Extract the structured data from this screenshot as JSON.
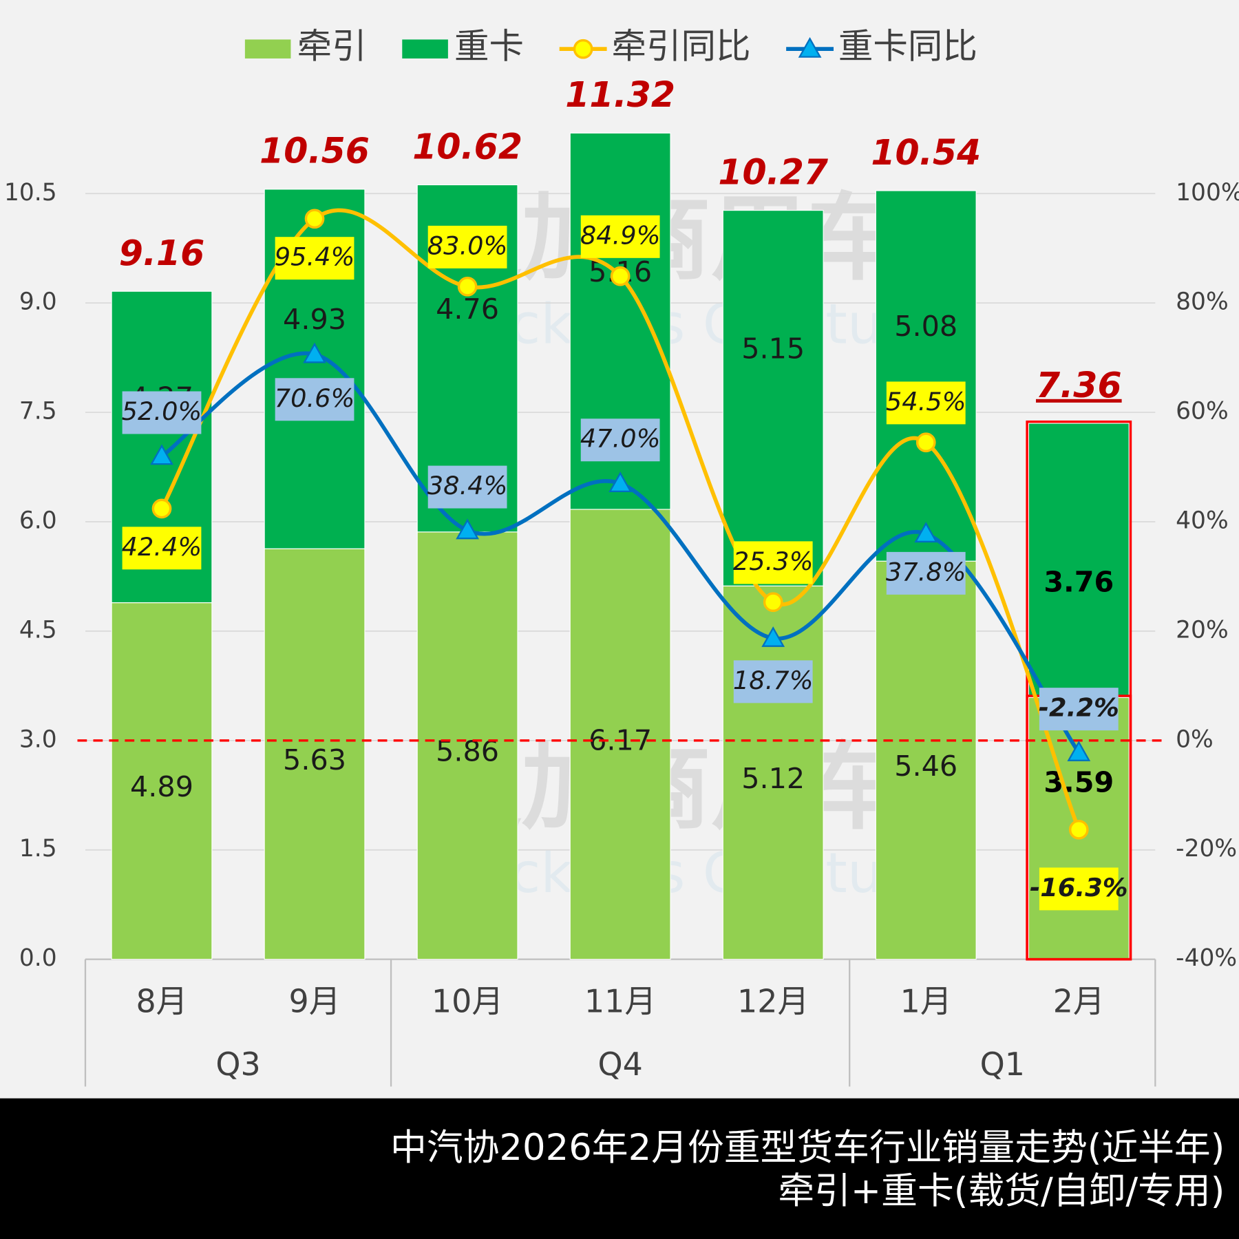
{
  "chart_data": {
    "type": "bar-line",
    "legend": {
      "position": "top"
    },
    "categories": [
      "8月",
      "9月",
      "10月",
      "11月",
      "12月",
      "1月",
      "2月"
    ],
    "groups": [
      {
        "name": "Q3",
        "count": 2
      },
      {
        "name": "Q4",
        "count": 3
      },
      {
        "name": "Q1",
        "count": 2
      }
    ],
    "series": [
      {
        "name": "牵引",
        "color": "#92d050",
        "values": [
          4.89,
          5.63,
          5.86,
          6.17,
          5.12,
          5.46,
          3.59
        ]
      },
      {
        "name": "重卡",
        "color": "#00b050",
        "values": [
          4.27,
          4.93,
          4.76,
          5.16,
          5.15,
          5.08,
          3.76
        ]
      },
      {
        "name": "牵引同比",
        "type": "line",
        "axis": "y2",
        "color": "#ffc000",
        "label_bg": "#ffff00",
        "values": [
          42.4,
          95.4,
          83.0,
          84.9,
          25.3,
          54.5,
          -16.3
        ],
        "value_labels": [
          "42.4%",
          "95.4%",
          "83.0%",
          "84.9%",
          "25.3%",
          "54.5%",
          "-16.3%"
        ]
      },
      {
        "name": "重卡同比",
        "type": "line",
        "axis": "y2",
        "color": "#0070c0",
        "label_bg": "#9dc3e6",
        "values": [
          52.0,
          70.6,
          38.4,
          47.0,
          18.7,
          37.8,
          -2.2
        ],
        "value_labels": [
          "52.0%",
          "70.6%",
          "38.4%",
          "47.0%",
          "18.7%",
          "37.8%",
          "-2.2%"
        ]
      }
    ],
    "totals": [
      9.16,
      10.56,
      10.62,
      11.32,
      10.27,
      10.54,
      7.36
    ],
    "ylim": [
      0,
      10.5
    ],
    "yticks": [
      {
        "value": 0,
        "label": "0.0"
      },
      1.5,
      {
        "value": 3,
        "label": "3.0"
      },
      4.5,
      {
        "value": 6,
        "label": "6.0"
      },
      7.5,
      {
        "value": 9,
        "label": "9.0"
      },
      10.5
    ],
    "y2lim": [
      -40,
      100
    ],
    "y2ticks": [
      {
        "value": -40,
        "label": "-40%"
      },
      {
        "value": -20,
        "label": "-20%"
      },
      {
        "value": 0,
        "label": "0%"
      },
      {
        "value": 20,
        "label": "20%"
      },
      {
        "value": 40,
        "label": "40%"
      },
      {
        "value": 60,
        "label": "60%"
      },
      {
        "value": 80,
        "label": "80%"
      },
      {
        "value": 100,
        "label": "100%"
      }
    ],
    "grid": true,
    "reference_line": {
      "axis": "y2",
      "value": 0,
      "color": "#ff0000"
    },
    "watermark": [
      "提加商用车",
      "TruckPlus CV studio"
    ],
    "footer": [
      "中汽协2026年2月份重型货车行业销量走势(近半年)",
      "牵引+重卡(载货/自卸/专用)"
    ]
  }
}
